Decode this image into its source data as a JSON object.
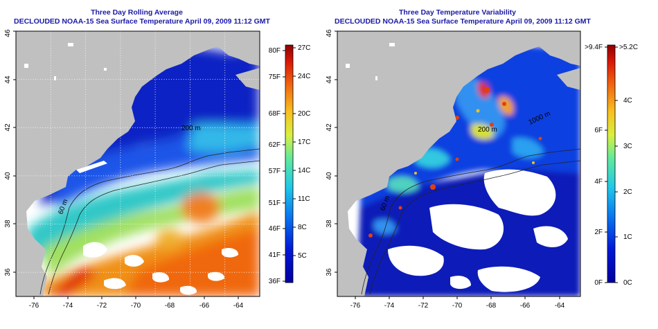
{
  "left_panel": {
    "title": "Three Day Rolling Average",
    "subtitle": "DECLOUDED NOAA-15 Sea Surface Temperature April 09, 2009 11:12 GMT",
    "x_ticks": [
      "-76",
      "-74",
      "-72",
      "-70",
      "-68",
      "-66",
      "-64"
    ],
    "y_ticks": [
      "36",
      "38",
      "40",
      "42",
      "44",
      "46"
    ],
    "colorbar_left_labels": [
      "80F",
      "75F",
      "68F",
      "62F",
      "57F",
      "51F",
      "46F",
      "41F",
      "36F"
    ],
    "colorbar_right_labels": [
      "27C",
      "24C",
      "20C",
      "17C",
      "14C",
      "11C",
      "8C",
      "5C"
    ],
    "colorbar_left_values": [
      80,
      75,
      68,
      62,
      57,
      51,
      46,
      41,
      36
    ],
    "colorbar_right_values": [
      27,
      24,
      20,
      17,
      14,
      11,
      8,
      5
    ],
    "colorbar_range_C": [
      2,
      27
    ],
    "contour_labels": [
      "60 m",
      "200 m"
    ]
  },
  "right_panel": {
    "title": "Three Day Temperature Variability",
    "subtitle": "DECLOUDED NOAA-15 Sea Surface Temperature April 09, 2009 11:12 GMT",
    "x_ticks": [
      "-76",
      "-74",
      "-72",
      "-70",
      "-68",
      "-66",
      "-64"
    ],
    "y_ticks": [
      "36",
      "38",
      "40",
      "42",
      "44",
      "46"
    ],
    "colorbar_left_labels": [
      ">9.4F",
      "6F",
      "4F",
      "2F",
      "0F"
    ],
    "colorbar_right_labels": [
      ">5.2C",
      "4C",
      "3C",
      "2C",
      "1C",
      "0C"
    ],
    "colorbar_left_values": [
      9.4,
      6,
      4,
      2,
      0
    ],
    "colorbar_right_values": [
      5.2,
      4,
      3,
      2,
      1,
      0
    ],
    "colorbar_range_C": [
      0,
      5.2
    ],
    "contour_labels": [
      "60 m",
      "200 m",
      "1000 m"
    ]
  },
  "map_extent": {
    "lon": [
      -77,
      -63
    ],
    "lat": [
      35,
      46
    ]
  },
  "colors": {
    "title": "#1a1aa6",
    "land": "#c0c0c0",
    "no_data": "#ffffff",
    "cold": "#0a1fa8",
    "warm": "#ee6a10"
  }
}
